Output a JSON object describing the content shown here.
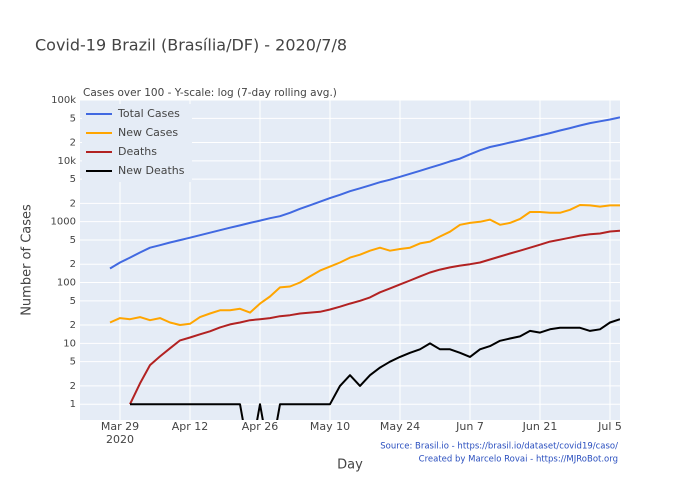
{
  "chart_data": {
    "type": "line",
    "title": "Covid-19 Brazil (Brasília/DF) - 2020/7/8",
    "subtitle": "Cases over 100 - Y-scale: log (7-day rolling avg.)",
    "x_label": "Day",
    "y_label": "Number of Cases",
    "annotations": [
      "Source: Brasil.io - https://brasil.io/dataset/covid19/caso/",
      "Created by Marcelo Rovai - https://MJRoBot.org"
    ],
    "log_y": true,
    "grid": true,
    "legend": "top-left",
    "x": [
      "2020-03-27",
      "2020-03-29",
      "2020-03-31",
      "2020-04-02",
      "2020-04-04",
      "2020-04-06",
      "2020-04-08",
      "2020-04-10",
      "2020-04-12",
      "2020-04-14",
      "2020-04-16",
      "2020-04-18",
      "2020-04-20",
      "2020-04-22",
      "2020-04-24",
      "2020-04-26",
      "2020-04-28",
      "2020-04-30",
      "2020-05-02",
      "2020-05-04",
      "2020-05-06",
      "2020-05-08",
      "2020-05-10",
      "2020-05-12",
      "2020-05-14",
      "2020-05-16",
      "2020-05-18",
      "2020-05-20",
      "2020-05-22",
      "2020-05-24",
      "2020-05-26",
      "2020-05-28",
      "2020-05-30",
      "2020-06-01",
      "2020-06-03",
      "2020-06-05",
      "2020-06-07",
      "2020-06-09",
      "2020-06-11",
      "2020-06-13",
      "2020-06-15",
      "2020-06-17",
      "2020-06-19",
      "2020-06-21",
      "2020-06-23",
      "2020-06-25",
      "2020-06-27",
      "2020-06-29",
      "2020-07-01",
      "2020-07-03",
      "2020-07-05",
      "2020-07-07"
    ],
    "xlim": [
      "2020-03-21",
      "2020-07-07"
    ],
    "xticks": [
      {
        "value": "2020-03-29",
        "label": "Mar 29"
      },
      {
        "value": "2020-04-12",
        "label": "Apr 12"
      },
      {
        "value": "2020-04-26",
        "label": "Apr 26"
      },
      {
        "value": "2020-05-10",
        "label": "May 10"
      },
      {
        "value": "2020-05-24",
        "label": "May 24"
      },
      {
        "value": "2020-06-07",
        "label": "Jun 7"
      },
      {
        "value": "2020-06-21",
        "label": "Jun 21"
      },
      {
        "value": "2020-07-05",
        "label": "Jul 5"
      }
    ],
    "x_year": "2020",
    "ylim": [
      0.55,
      100000
    ],
    "yticks": [
      1,
      2,
      5,
      10,
      {
        "value": 20,
        "label": "2"
      },
      {
        "value": 50,
        "label": "5"
      },
      100,
      {
        "value": 200,
        "label": "2"
      },
      {
        "value": 500,
        "label": "5"
      },
      1000,
      {
        "value": 2000,
        "label": "2"
      },
      {
        "value": 5000,
        "label": "5"
      },
      {
        "value": 10000,
        "label": "10k"
      },
      {
        "value": 20000,
        "label": "2"
      },
      {
        "value": 50000,
        "label": "5"
      },
      {
        "value": 100000,
        "label": "100k"
      }
    ],
    "series": [
      {
        "name": "Total Cases",
        "color": "#4169e1",
        "values": [
          170,
          213,
          257,
          311,
          373,
          410,
          454,
          498,
          546,
          600,
          660,
          724,
          795,
          870,
          955,
          1040,
          1140,
          1230,
          1400,
          1630,
          1860,
          2130,
          2440,
          2770,
          3170,
          3540,
          3970,
          4450,
          4900,
          5470,
          6130,
          6870,
          7700,
          8630,
          9800,
          10900,
          12800,
          14900,
          16900,
          18300,
          20000,
          21700,
          23800,
          26100,
          28600,
          31500,
          34500,
          38100,
          41700,
          44600,
          47800,
          52000
        ]
      },
      {
        "name": "New Cases",
        "color": "#ffa500",
        "values": [
          22,
          26,
          25,
          27,
          24,
          26,
          22,
          20,
          21,
          27,
          31,
          35,
          35,
          37,
          32,
          45,
          59,
          83,
          86,
          100,
          126,
          157,
          183,
          213,
          257,
          287,
          334,
          373,
          334,
          355,
          373,
          440,
          470,
          570,
          685,
          890,
          955,
          995,
          1080,
          890,
          955,
          1110,
          1440,
          1440,
          1400,
          1400,
          1570,
          1880,
          1850,
          1770,
          1850,
          1850
        ]
      },
      {
        "name": "Deaths",
        "color": "#b22222",
        "values": [
          null,
          null,
          1,
          2.2,
          4.4,
          6.1,
          8.3,
          11.2,
          12.5,
          14.1,
          15.8,
          18.3,
          20.5,
          22,
          24,
          25,
          26,
          28,
          29,
          31,
          32,
          33,
          36,
          40,
          45,
          50,
          57,
          69,
          80,
          93,
          108,
          126,
          146,
          163,
          177,
          190,
          200,
          213,
          239,
          268,
          300,
          334,
          373,
          419,
          470,
          505,
          545,
          590,
          620,
          640,
          690,
          710
        ]
      },
      {
        "name": "New Deaths",
        "color": "#000000",
        "values": [
          null,
          null,
          1,
          1,
          1,
          1,
          1,
          1,
          1,
          1,
          1,
          1,
          1,
          1,
          0,
          1,
          0,
          1,
          1,
          1,
          1,
          1,
          1,
          2,
          3,
          2,
          3,
          4,
          5,
          6,
          7,
          8,
          10,
          8,
          8,
          7,
          6,
          8,
          9,
          11,
          12,
          13,
          16,
          15,
          17,
          18,
          18,
          18,
          16,
          17,
          22,
          25
        ]
      }
    ]
  }
}
